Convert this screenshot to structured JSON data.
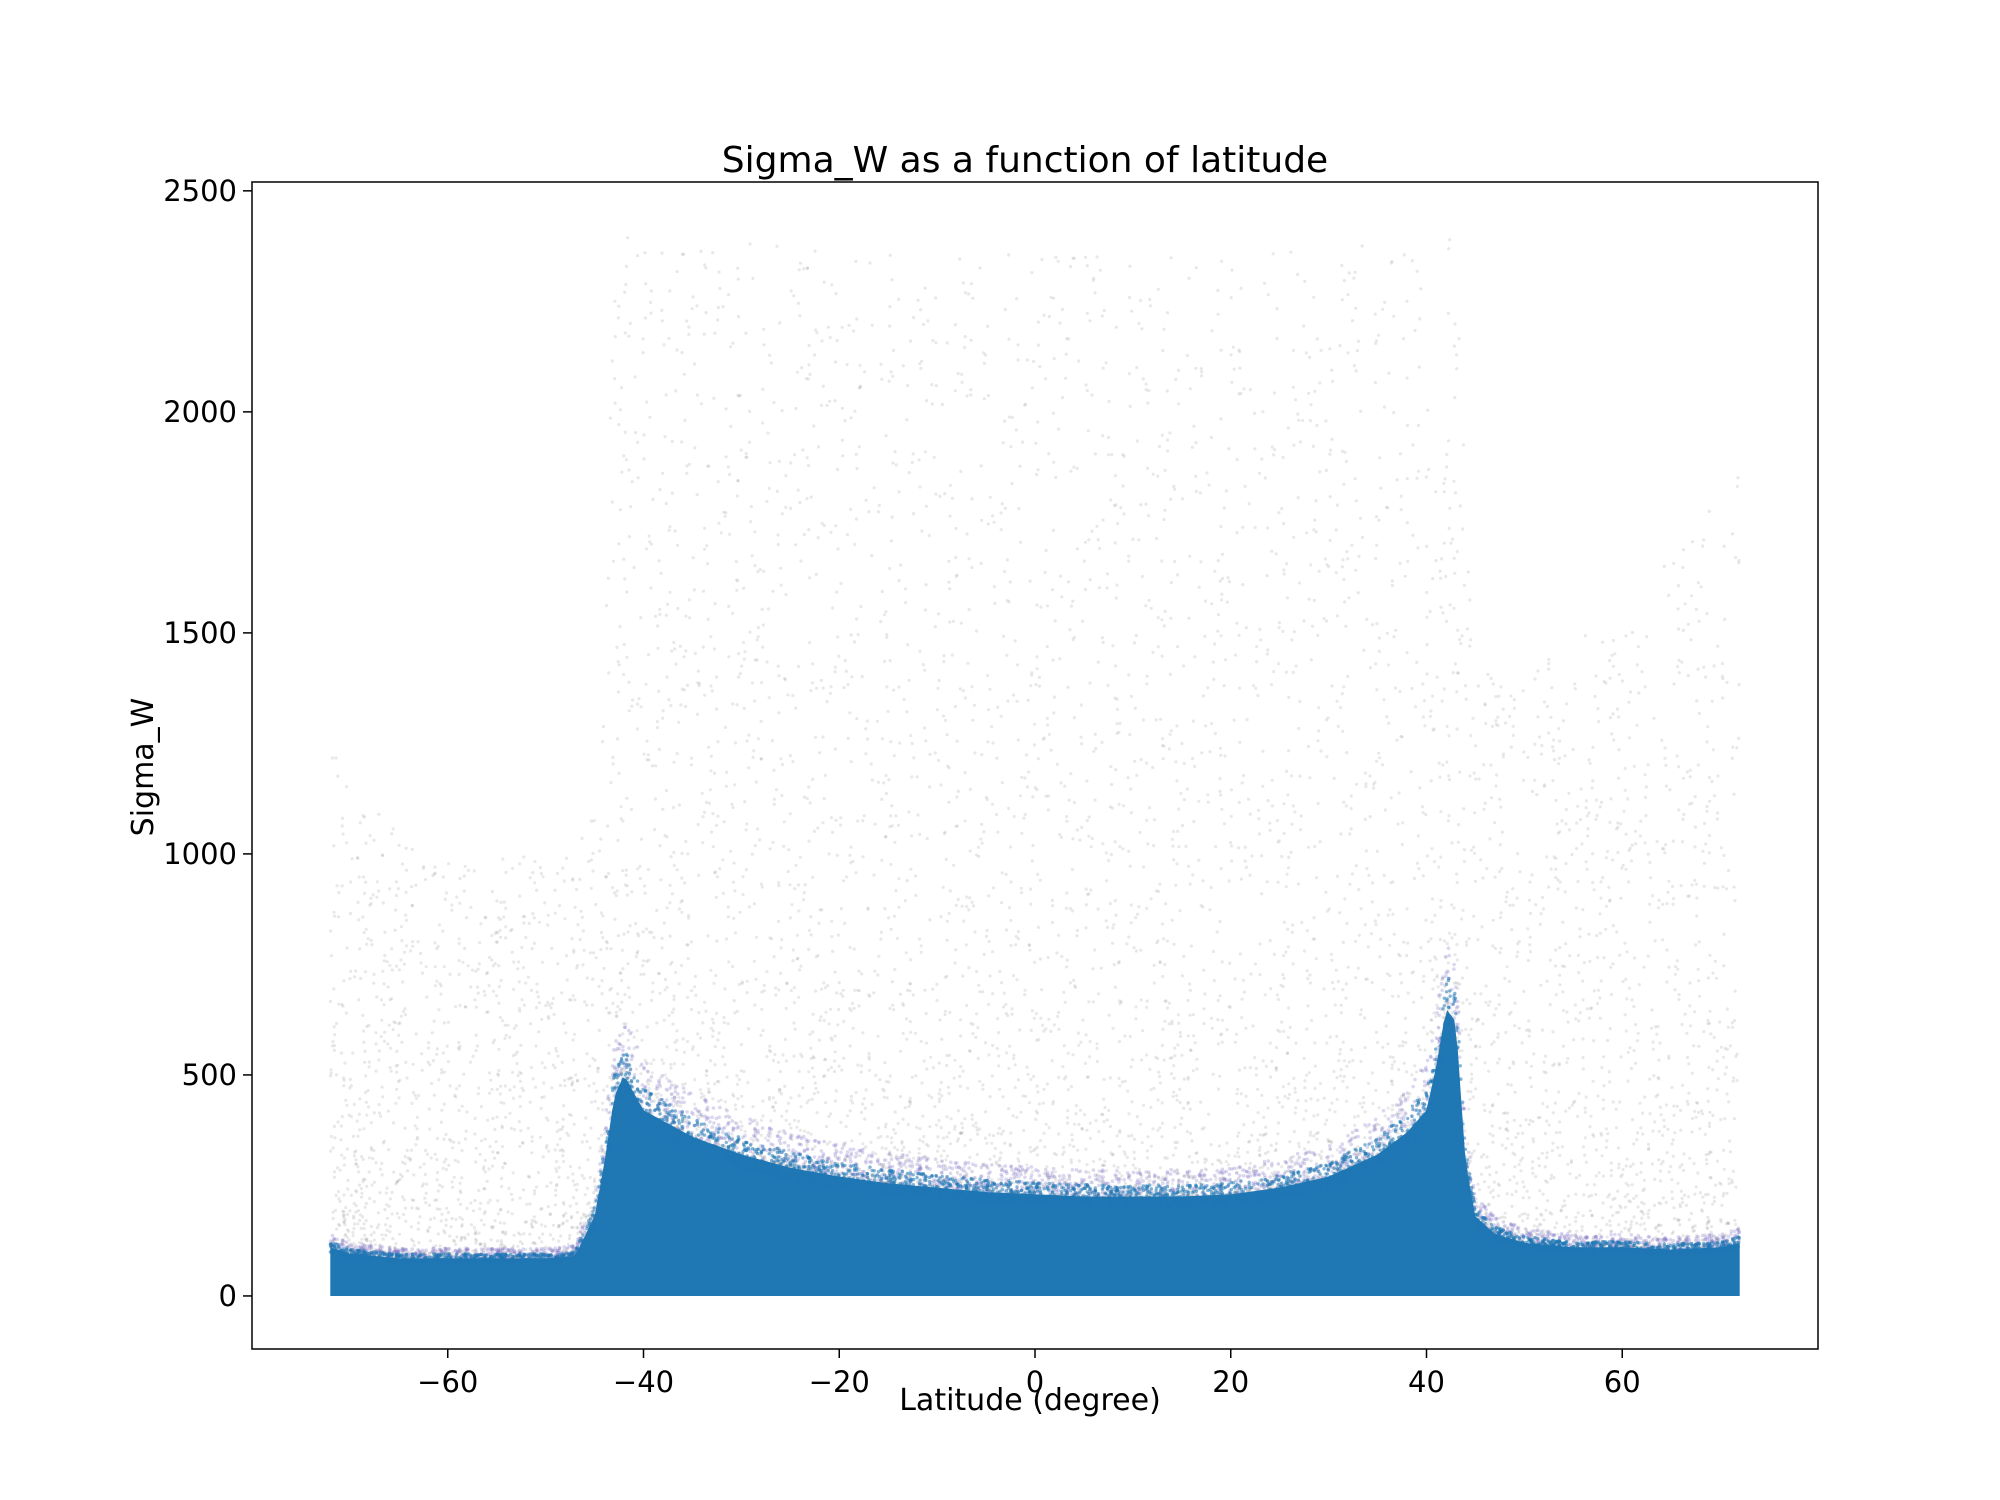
{
  "chart_data": {
    "type": "scatter",
    "title": "Sigma_W as a function of latitude",
    "xlabel": "Latitude (degree)",
    "ylabel": "Sigma_W",
    "xlim": [
      -80,
      80
    ],
    "ylim": [
      -120,
      2520
    ],
    "xticks": [
      -60,
      -40,
      -20,
      0,
      20,
      40,
      60
    ],
    "yticks": [
      0,
      500,
      1000,
      1500,
      2000,
      2500
    ],
    "xtick_labels": [
      "−60",
      "−40",
      "−20",
      "0",
      "20",
      "40",
      "60"
    ],
    "ytick_labels": [
      "0",
      "500",
      "1000",
      "1500",
      "2000",
      "2500"
    ],
    "grid": false,
    "legend": "none",
    "colors": {
      "dense_core": "#1f77b4",
      "transition": "#7b6fc4",
      "sparse_points": "#6e6e6e",
      "axes": "#000000"
    },
    "series": [
      {
        "lat": [
          -72,
          -70,
          -65,
          -60,
          -55,
          -50,
          -47,
          -45,
          -44,
          -43,
          -42,
          -40,
          -35,
          -30,
          -25,
          -20,
          -15,
          -10,
          -5,
          0,
          5,
          10,
          15,
          20,
          25,
          30,
          35,
          38,
          40,
          41,
          42,
          43,
          44,
          45,
          47,
          50,
          55,
          60,
          65,
          70,
          72
        ],
        "dense_upper": [
          110,
          95,
          85,
          85,
          85,
          85,
          90,
          180,
          300,
          450,
          500,
          420,
          360,
          320,
          290,
          270,
          255,
          245,
          235,
          230,
          225,
          225,
          225,
          230,
          245,
          270,
          320,
          370,
          420,
          520,
          650,
          620,
          300,
          180,
          140,
          120,
          110,
          110,
          105,
          110,
          120
        ],
        "sparse_max": [
          1300,
          1150,
          1050,
          1000,
          1000,
          1000,
          1000,
          1100,
          1400,
          2400,
          2400,
          2400,
          2380,
          2380,
          2380,
          2360,
          2360,
          2360,
          2360,
          2360,
          2360,
          2360,
          2360,
          2360,
          2360,
          2370,
          2380,
          2380,
          2400,
          2400,
          2400,
          2400,
          1800,
          1500,
          1400,
          1400,
          1500,
          1500,
          1700,
          1800,
          1900
        ]
      }
    ]
  }
}
